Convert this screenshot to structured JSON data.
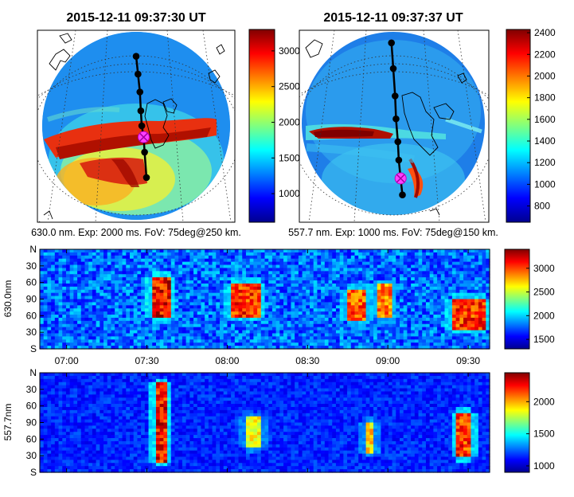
{
  "chart_data": [
    {
      "type": "heatmap",
      "panel": "allsky-630",
      "title": "2015-12-11 09:37:30 UT",
      "caption": "630.0 nm. Exp: 2000 ms. FoV: 75deg@250 km.",
      "colorbar": {
        "ticks": [
          "3000",
          "2500",
          "2000",
          "1500",
          "1000"
        ],
        "range": [
          600,
          3300
        ]
      },
      "track_points": [
        {
          "x": 0.0,
          "y": 0.74
        },
        {
          "x": 0.02,
          "y": 0.55
        },
        {
          "x": 0.04,
          "y": 0.36
        },
        {
          "x": 0.05,
          "y": 0.16
        },
        {
          "x": 0.06,
          "y": 0.0
        },
        {
          "x": 0.08,
          "y": -0.12,
          "marker": "x"
        },
        {
          "x": 0.09,
          "y": -0.28
        },
        {
          "x": 0.11,
          "y": -0.55
        }
      ]
    },
    {
      "type": "heatmap",
      "panel": "allsky-557",
      "title": "2015-12-11 09:37:37 UT",
      "caption": "557.7 nm. Exp: 1000 ms. FoV: 75deg@150 km.",
      "colorbar": {
        "ticks": [
          "2400",
          "2200",
          "2000",
          "1800",
          "1600",
          "1400",
          "1200",
          "1000",
          "800"
        ],
        "range": [
          650,
          2430
        ]
      },
      "track_points": [
        {
          "x": -0.02,
          "y": 0.88
        },
        {
          "x": 0.0,
          "y": 0.6
        },
        {
          "x": 0.02,
          "y": 0.3
        },
        {
          "x": 0.03,
          "y": 0.05
        },
        {
          "x": 0.05,
          "y": -0.2
        },
        {
          "x": 0.06,
          "y": -0.4
        },
        {
          "x": 0.08,
          "y": -0.6,
          "marker": "x"
        },
        {
          "x": 0.1,
          "y": -0.78
        }
      ]
    },
    {
      "type": "heatmap",
      "panel": "keogram-630",
      "ylabel": "630.0nm",
      "y_ticks": [
        "N",
        "30",
        "60",
        "90",
        "60",
        "30",
        "S"
      ],
      "x_ticks": [
        "07:00",
        "07:30",
        "08:00",
        "08:30",
        "09:00",
        "09:30"
      ],
      "x_range": [
        "06:50",
        "09:38"
      ],
      "colorbar": {
        "ticks": [
          "3000",
          "2500",
          "2000",
          "1500"
        ],
        "range": [
          1300,
          3400
        ]
      },
      "arcs": [
        {
          "t0": 7.53,
          "t1": 7.64,
          "lo": 0.3,
          "hi": 0.72,
          "amp": 1.0
        },
        {
          "t0": 8.02,
          "t1": 8.2,
          "lo": 0.32,
          "hi": 0.66,
          "amp": 0.95
        },
        {
          "t0": 8.75,
          "t1": 8.87,
          "lo": 0.28,
          "hi": 0.6,
          "amp": 0.9
        },
        {
          "t0": 8.93,
          "t1": 9.02,
          "lo": 0.3,
          "hi": 0.65,
          "amp": 0.85
        },
        {
          "t0": 9.4,
          "t1": 9.62,
          "lo": 0.2,
          "hi": 0.5,
          "amp": 0.95
        }
      ]
    },
    {
      "type": "heatmap",
      "panel": "keogram-557",
      "ylabel": "557.7nm",
      "y_ticks": [
        "N",
        "30",
        "60",
        "90",
        "60",
        "30",
        "S"
      ],
      "x_range": [
        "06:50",
        "09:38"
      ],
      "colorbar": {
        "ticks": [
          "2000",
          "1500",
          "1000"
        ],
        "range": [
          900,
          2450
        ]
      },
      "arcs": [
        {
          "t0": 7.55,
          "t1": 7.62,
          "lo": 0.1,
          "hi": 0.9,
          "amp": 1.0
        },
        {
          "t0": 8.12,
          "t1": 8.22,
          "lo": 0.25,
          "hi": 0.55,
          "amp": 0.7
        },
        {
          "t0": 8.86,
          "t1": 8.92,
          "lo": 0.2,
          "hi": 0.5,
          "amp": 0.75
        },
        {
          "t0": 9.43,
          "t1": 9.52,
          "lo": 0.15,
          "hi": 0.6,
          "amp": 0.95
        }
      ]
    }
  ]
}
